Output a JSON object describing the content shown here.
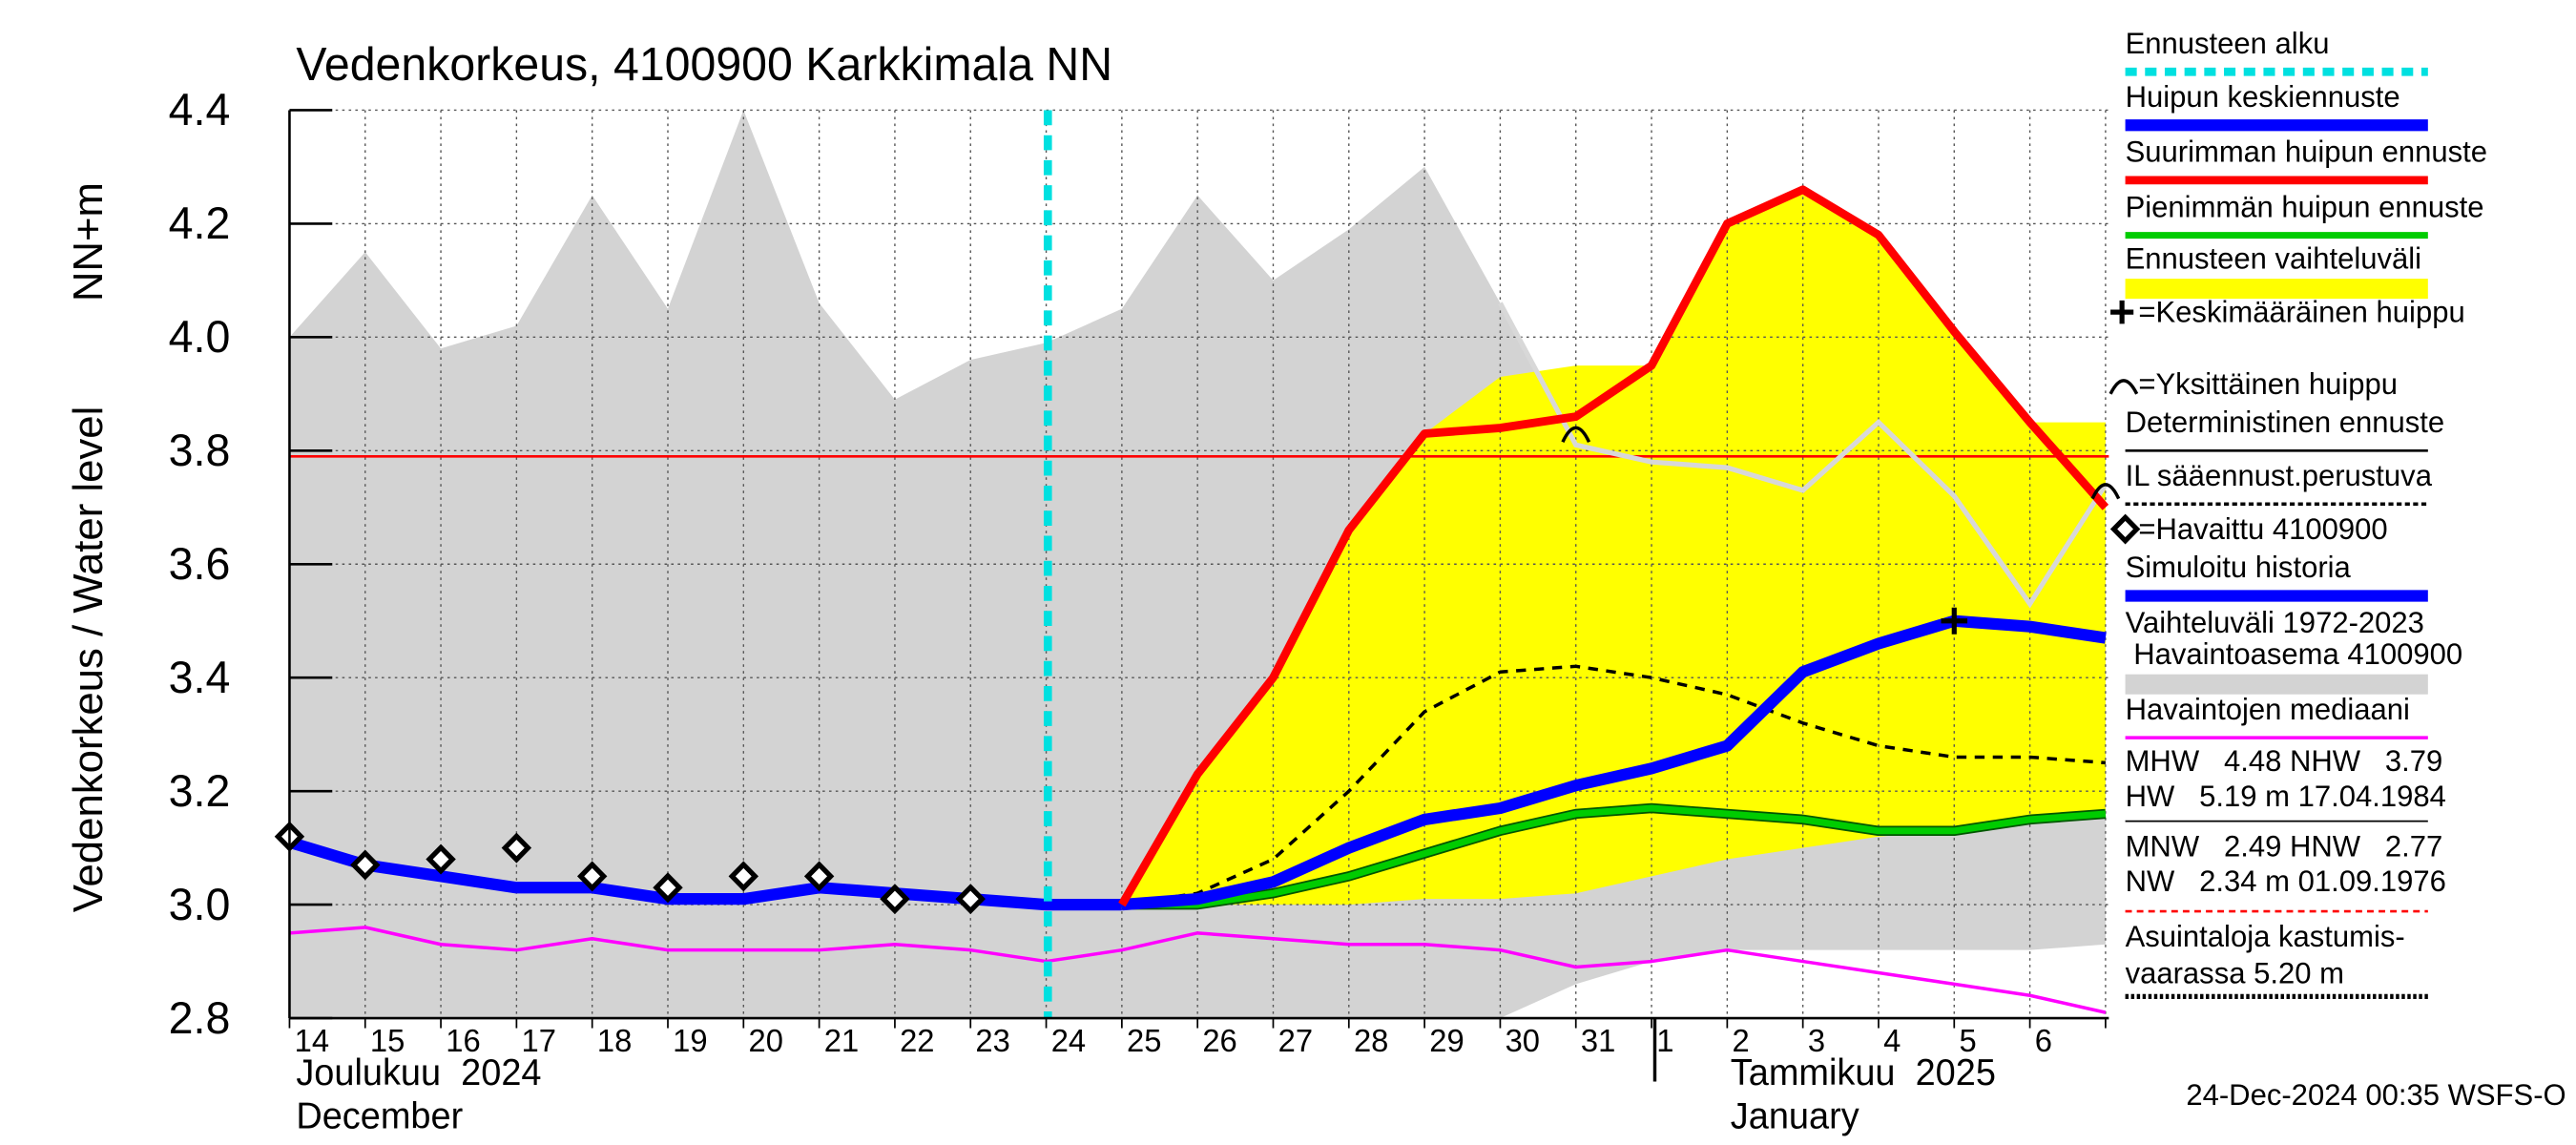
{
  "chart_data": {
    "type": "line",
    "title": "Vedenkorkeus, 4100900 Karkkimala NN",
    "y_label": "Vedenkorkeus / Water level",
    "y_unit": "NN+m",
    "categories": [
      "14",
      "15",
      "16",
      "17",
      "18",
      "19",
      "20",
      "21",
      "22",
      "23",
      "24",
      "25",
      "26",
      "27",
      "28",
      "29",
      "30",
      "31",
      "1",
      "2",
      "3",
      "4",
      "5",
      "6",
      null
    ],
    "month_labels": [
      {
        "fi": "Joulukuu  2024",
        "en": "December"
      },
      {
        "fi": "Tammikuu  2025",
        "en": "January"
      }
    ],
    "ylim": [
      2.8,
      4.4
    ],
    "yticks": [
      2.8,
      {
        "value": 3,
        "label": "3.0"
      },
      3.2,
      3.4,
      3.6,
      3.8,
      {
        "value": 4,
        "label": "4.0"
      },
      4.2,
      4.4
    ],
    "grid": true,
    "reference_line": {
      "value": 3.79,
      "color": "#ff0000"
    },
    "series": [
      {
        "name": "Ennusteen alku",
        "color": "#00e0e0",
        "style": "vline"
      },
      {
        "name": "Huipun keskiennuste",
        "color": "#0000ff",
        "style": "line",
        "values": [
          null,
          null,
          null,
          null,
          null,
          null,
          null,
          null,
          null,
          null,
          null,
          3.0,
          3.01,
          3.04,
          3.1,
          3.15,
          3.17,
          3.21,
          3.24,
          3.28,
          3.41,
          3.46,
          3.5,
          3.49,
          3.47
        ]
      },
      {
        "name": "Suurimman huipun ennuste",
        "color": "#ff0000",
        "style": "line",
        "values": [
          null,
          null,
          null,
          null,
          null,
          null,
          null,
          null,
          null,
          null,
          null,
          3.0,
          3.23,
          3.4,
          3.66,
          3.83,
          3.84,
          3.86,
          3.95,
          4.2,
          4.26,
          4.18,
          4.01,
          3.85,
          3.7
        ]
      },
      {
        "name": "Pienimmän huipun ennuste",
        "color": "#00cc00",
        "style": "line",
        "values": [
          null,
          null,
          null,
          null,
          null,
          null,
          null,
          null,
          null,
          null,
          null,
          3.0,
          3.0,
          3.02,
          3.05,
          3.09,
          3.13,
          3.16,
          3.17,
          3.16,
          3.15,
          3.13,
          3.13,
          3.15,
          3.16
        ]
      },
      {
        "name": "Ennusteen vaihteluväli",
        "color": "#ffff00",
        "style": "band",
        "upper": [
          null,
          null,
          null,
          null,
          null,
          null,
          null,
          null,
          null,
          null,
          null,
          3.0,
          3.23,
          3.4,
          3.66,
          3.83,
          3.93,
          3.95,
          3.95,
          4.2,
          4.26,
          4.18,
          4.01,
          3.85,
          3.85
        ],
        "lower": [
          null,
          null,
          null,
          null,
          null,
          null,
          null,
          null,
          null,
          null,
          null,
          3.0,
          3.0,
          3.0,
          3.0,
          3.01,
          3.01,
          3.02,
          3.05,
          3.08,
          3.1,
          3.12,
          3.13,
          3.15,
          3.16
        ]
      },
      {
        "name": "=Keskimääräinen huippu",
        "color": "#000000",
        "style": "plus",
        "values": [
          null,
          null,
          null,
          null,
          null,
          null,
          null,
          null,
          null,
          null,
          null,
          null,
          null,
          null,
          null,
          null,
          null,
          null,
          null,
          null,
          null,
          null,
          3.5,
          null,
          null
        ]
      },
      {
        "name": "=Yksittäinen huippu",
        "color": "#000000",
        "style": "arc",
        "values": [
          null,
          null,
          null,
          null,
          null,
          null,
          null,
          null,
          null,
          null,
          null,
          null,
          null,
          null,
          null,
          null,
          null,
          3.83,
          null,
          null,
          null,
          null,
          null,
          null,
          3.73
        ]
      },
      {
        "name": "Deterministinen ennuste",
        "color": "#000000",
        "style": "line"
      },
      {
        "name": "IL sääennust.perustuva",
        "color": "#000000",
        "style": "dashed",
        "values": [
          null,
          null,
          null,
          null,
          null,
          null,
          null,
          null,
          null,
          null,
          null,
          3.0,
          3.02,
          3.08,
          3.2,
          3.34,
          3.41,
          3.42,
          3.4,
          3.37,
          3.32,
          3.28,
          3.26,
          3.26,
          3.25
        ]
      },
      {
        "name": "=Havaittu 4100900",
        "color": "#000000",
        "style": "diamond",
        "values": [
          3.12,
          3.07,
          3.08,
          3.1,
          3.05,
          3.03,
          3.05,
          3.05,
          3.01,
          3.01,
          null,
          null,
          null,
          null,
          null,
          null,
          null,
          null,
          null,
          null,
          null,
          null,
          null,
          null,
          null
        ]
      },
      {
        "name": "Simuloitu historia",
        "color": "#0000ff",
        "style": "line",
        "values": [
          3.11,
          3.07,
          3.05,
          3.03,
          3.03,
          3.01,
          3.01,
          3.03,
          3.02,
          3.01,
          3.0,
          3.0,
          null,
          null,
          null,
          null,
          null,
          null,
          null,
          null,
          null,
          null,
          null,
          null,
          null
        ]
      },
      {
        "name": "Vaihteluväli 1972-2023",
        "subname": " Havaintoasema 4100900",
        "color": "#d3d3d3",
        "style": "band",
        "upper": [
          4.0,
          4.15,
          3.98,
          4.02,
          4.25,
          4.05,
          4.4,
          4.06,
          3.89,
          3.96,
          3.99,
          4.05,
          4.25,
          4.1,
          4.19,
          4.3,
          4.06,
          3.81,
          3.78,
          3.77,
          3.73,
          3.85,
          3.72,
          3.53,
          3.74
        ],
        "lower": [
          2.8,
          2.8,
          2.8,
          2.8,
          2.8,
          2.8,
          2.8,
          2.8,
          2.8,
          2.8,
          2.8,
          2.8,
          2.8,
          2.8,
          2.8,
          2.8,
          2.8,
          2.86,
          2.9,
          2.92,
          2.92,
          2.92,
          2.92,
          2.92,
          2.93
        ]
      },
      {
        "name": "Havaintojen mediaani",
        "color": "#ff00ff",
        "style": "line",
        "values": [
          2.95,
          2.96,
          2.93,
          2.92,
          2.94,
          2.92,
          2.92,
          2.92,
          2.93,
          2.92,
          2.9,
          2.92,
          2.95,
          2.94,
          2.93,
          2.93,
          2.92,
          2.89,
          2.9,
          2.92,
          2.9,
          2.88,
          2.86,
          2.84,
          2.81
        ]
      }
    ],
    "notes": [
      "MHW   4.48 NHW   3.79",
      "HW   5.19 m 17.04.1984",
      "MNW   2.49 HNW   2.77",
      "NW   2.34 m 01.09.1976",
      "Asuintaloja kastumis-",
      "vaarassa 5.20 m"
    ],
    "footer": "24-Dec-2024 00:35 WSFS-O"
  }
}
